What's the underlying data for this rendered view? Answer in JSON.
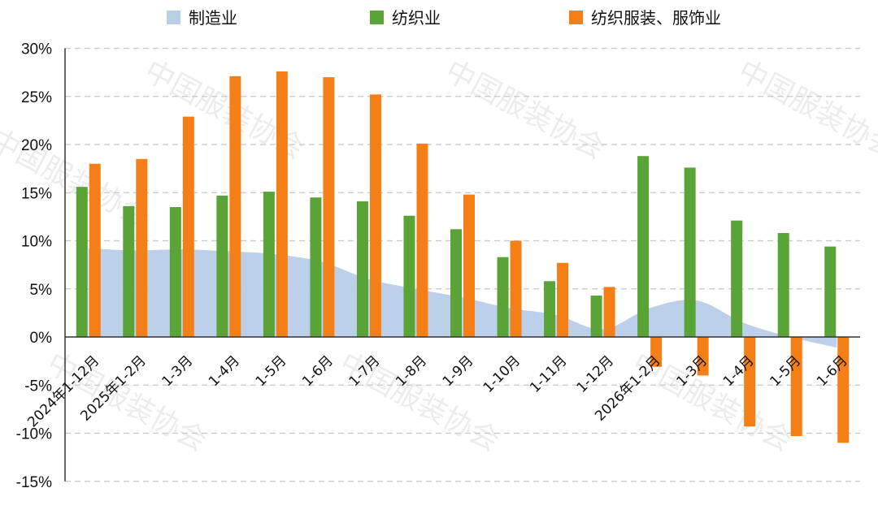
{
  "chart_data": {
    "type": "bar",
    "categories": [
      "2024年1-12月",
      "2025年1-2月",
      "1-3月",
      "1-4月",
      "1-5月",
      "1-6月",
      "1-7月",
      "1-8月",
      "1-9月",
      "1-10月",
      "1-11月",
      "1-12月",
      "2026年1-2月",
      "1-3月",
      "1-4月",
      "1-5月",
      "1-6月"
    ],
    "series": [
      {
        "name": "制造业",
        "kind": "area",
        "color": "#b8cfe8",
        "values": [
          9.2,
          9.0,
          9.1,
          8.9,
          8.6,
          7.8,
          6.0,
          5.0,
          4.1,
          3.0,
          2.3,
          0.8,
          3.0,
          3.8,
          1.5,
          0.0,
          -1.1
        ]
      },
      {
        "name": "纺织业",
        "kind": "bar",
        "color": "#5aa336",
        "values": [
          15.6,
          13.6,
          13.5,
          14.7,
          15.1,
          14.5,
          14.1,
          12.6,
          11.2,
          8.3,
          5.8,
          4.3,
          18.8,
          17.6,
          12.1,
          10.8,
          9.4
        ]
      },
      {
        "name": "纺织服装、服饰业",
        "kind": "bar",
        "color": "#f57f17",
        "values": [
          18.0,
          18.5,
          22.9,
          27.1,
          27.6,
          27.0,
          25.2,
          20.1,
          14.8,
          10.0,
          7.7,
          5.2,
          -3.1,
          -4.0,
          -9.3,
          -10.3,
          -11.0
        ]
      }
    ],
    "y_tick_labels": [
      "30%",
      "25%",
      "20%",
      "15%",
      "10%",
      "5%",
      "0%",
      "-5%",
      "-10%",
      "-15%"
    ],
    "ylim": [
      -15,
      30
    ],
    "y_unit": "%",
    "grid": true,
    "legend_position": "top",
    "watermark": "中国服装协会"
  }
}
